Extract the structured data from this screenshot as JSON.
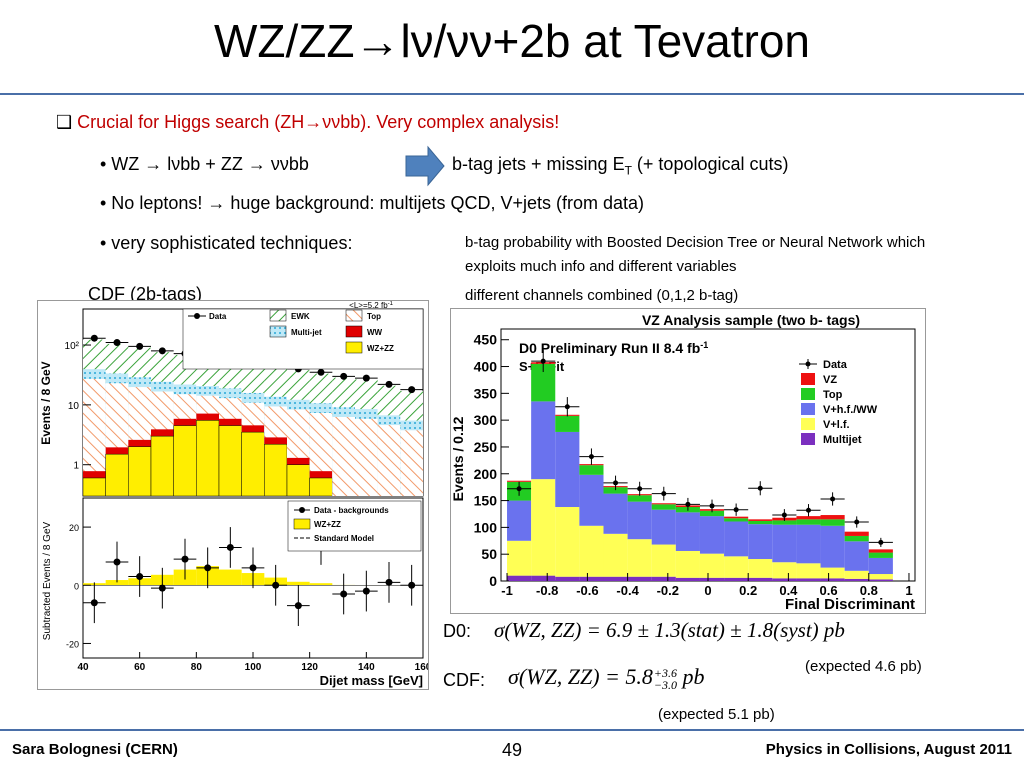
{
  "slide": {
    "title": "WZ/ZZ→lν/νν+2b at Tevatron",
    "bullet_main": "Crucial for Higgs search (ZH→ννbb). Very complex analysis!",
    "sub1_left": "• WZ → lνbb + ZZ → ννbb",
    "sub1_right_pre": "b-tag jets + missing E",
    "sub1_right_sub": "T",
    "sub1_right_post": " (+ topological cuts)",
    "sub2": "• No leptons! → huge background: multijets QCD, V+jets (from data)",
    "sub3": "• very sophisticated techniques:",
    "note1": "b-tag probability with Boosted Decision Tree or Neural Network which exploits much info and different variables",
    "note2": "different channels combined (0,1,2 b-tag)",
    "cdf_caption": "CDF (2b-tags)",
    "d0_label": "D0:",
    "d0_formula": "σ(WZ, ZZ) = 6.9 ± 1.3(stat) ± 1.8(syst) pb",
    "cdf_label": "CDF:",
    "cdf_formula_pre": "σ(WZ, ZZ) = 5.8",
    "cdf_formula_sup": "+3.6",
    "cdf_formula_sub": "−3.0",
    "cdf_formula_post": " pb",
    "expected_d0": "(expected 4.6 pb)",
    "expected_cdf": "(expected 5.1 pb)",
    "footer_left": "Sara Bolognesi (CERN)",
    "footer_center": "49",
    "footer_right": "Physics in Collisions, August 2011"
  },
  "colors": {
    "title_rule": "#4a6fa8",
    "red_text": "#c00000",
    "arrow": "#4f81bd"
  },
  "chart_data": [
    {
      "type": "bar",
      "title": "",
      "xlabel": "Dijet mass [GeV]",
      "ylabel": "Events / 8 GeV",
      "lumi": "<L>=5.2 fb",
      "lumi_sup": "-1",
      "x_ticks": [
        "40",
        "60",
        "80",
        "100",
        "120",
        "140",
        "160"
      ],
      "y_ticks": [
        "1",
        "10",
        "10²"
      ],
      "legend": [
        "Data",
        "EWK",
        "Multi-jet",
        "Top",
        "WW",
        "WZ+ZZ"
      ],
      "categories": [
        44,
        52,
        60,
        68,
        76,
        84,
        92,
        100,
        108,
        116,
        124,
        132,
        140,
        148,
        156
      ],
      "series": [
        {
          "name": "WZ+ZZ",
          "values": [
            0.6,
            1.5,
            2.0,
            3.0,
            4.5,
            5.5,
            4.5,
            3.5,
            2.2,
            1.0,
            0.6,
            0.1,
            0.05,
            0.02,
            0.01
          ]
        },
        {
          "name": "Data",
          "values": [
            130,
            110,
            95,
            80,
            72,
            68,
            62,
            52,
            45,
            40,
            35,
            30,
            28,
            22,
            18
          ]
        }
      ]
    },
    {
      "type": "scatter",
      "title": "",
      "xlabel": "",
      "ylabel": "Subtracted Events / 8 GeV",
      "x_ticks": [
        "40",
        "60",
        "80",
        "100",
        "120",
        "140",
        "160"
      ],
      "y_ticks": [
        "-20",
        "0",
        "20"
      ],
      "legend": [
        "Data - backgrounds",
        "WZ+ZZ",
        "Standard Model"
      ],
      "series": [
        {
          "name": "Data - backgrounds",
          "x": [
            44,
            52,
            60,
            68,
            76,
            84,
            92,
            100,
            108,
            116,
            124,
            132,
            140,
            148,
            156
          ],
          "y": [
            -6,
            8,
            3,
            -1,
            9,
            6,
            13,
            6,
            0,
            -7,
            14,
            -3,
            -2,
            1,
            0
          ]
        }
      ]
    },
    {
      "type": "bar",
      "title": "VZ Analysis sample (two b- tags)",
      "subtitle": "D0 Preliminary Run II 8.4 fb",
      "subtitle_sup": "-1",
      "fit_label": "S+B Fit",
      "xlabel": "Final Discriminant",
      "ylabel": "Events / 0.12",
      "y_ticks": [
        "0",
        "50",
        "100",
        "150",
        "200",
        "250",
        "300",
        "350",
        "400",
        "450"
      ],
      "x_ticks": [
        "-1",
        "-0.8",
        "-0.6",
        "-0.4",
        "-0.2",
        "0",
        "0.2",
        "0.4",
        "0.6",
        "0.8",
        "1"
      ],
      "legend": [
        "Data",
        "VZ",
        "Top",
        "V+h.f./WW",
        "V+l.f.",
        "Multijet"
      ],
      "ylim": [
        0,
        470
      ],
      "categories": [
        -0.94,
        -0.82,
        -0.7,
        -0.58,
        -0.46,
        -0.34,
        -0.22,
        -0.1,
        0.02,
        0.14,
        0.26,
        0.38,
        0.5,
        0.62,
        0.74,
        0.86
      ],
      "series": [
        {
          "name": "Multijet",
          "values": [
            10,
            10,
            8,
            8,
            8,
            8,
            8,
            6,
            6,
            6,
            6,
            5,
            5,
            5,
            4,
            3
          ]
        },
        {
          "name": "V+l.f.",
          "values": [
            65,
            180,
            130,
            95,
            80,
            70,
            60,
            50,
            45,
            40,
            35,
            30,
            28,
            20,
            15,
            10
          ]
        },
        {
          "name": "V+h.f./WW",
          "values": [
            75,
            145,
            140,
            95,
            75,
            70,
            65,
            72,
            70,
            65,
            65,
            70,
            72,
            78,
            55,
            30
          ]
        },
        {
          "name": "Top",
          "values": [
            35,
            70,
            30,
            18,
            12,
            12,
            10,
            10,
            10,
            6,
            6,
            8,
            10,
            12,
            10,
            10
          ]
        },
        {
          "name": "VZ",
          "values": [
            2,
            3,
            2,
            2,
            2,
            2,
            2,
            3,
            3,
            3,
            3,
            5,
            6,
            8,
            8,
            6
          ]
        },
        {
          "name": "Data",
          "values": [
            172,
            410,
            325,
            232,
            183,
            172,
            163,
            143,
            140,
            133,
            173,
            123,
            132,
            153,
            110,
            72
          ]
        }
      ]
    }
  ]
}
